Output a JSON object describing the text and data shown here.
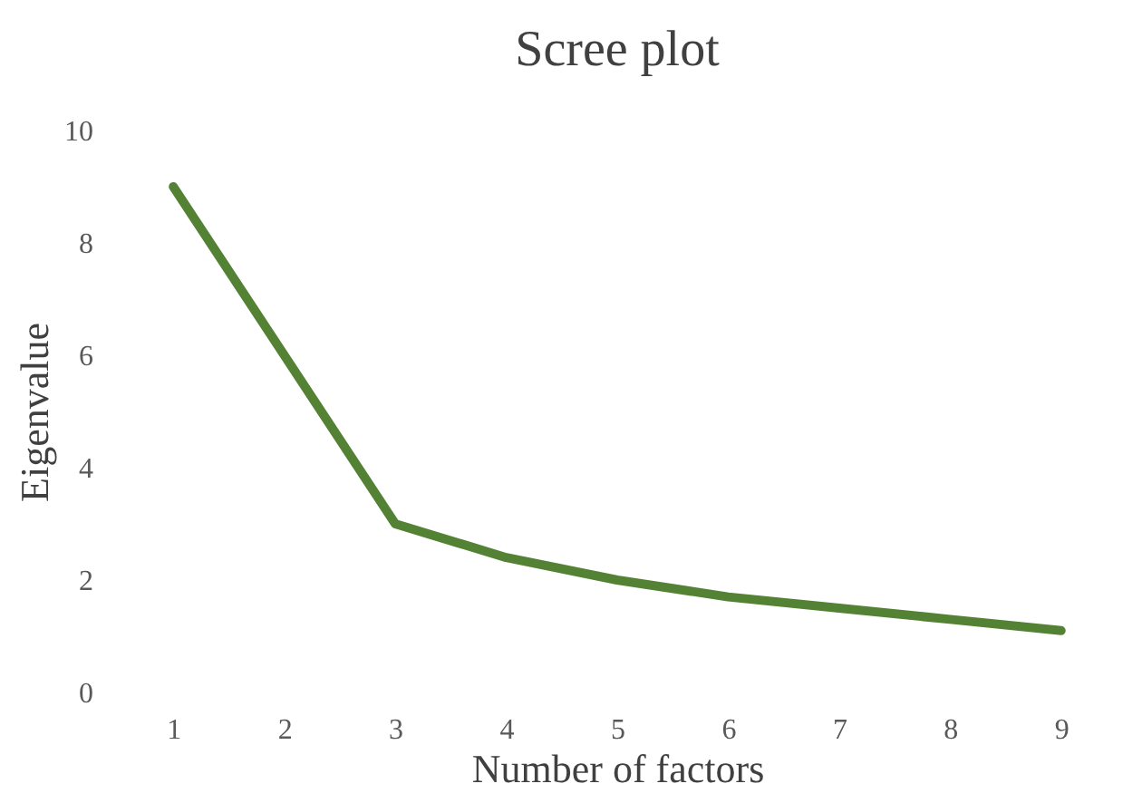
{
  "chart_data": {
    "type": "line",
    "title": "Scree plot",
    "xlabel": "Number of factors",
    "ylabel": "Eigenvalue",
    "categories": [
      "1",
      "2",
      "3",
      "4",
      "5",
      "6",
      "7",
      "8",
      "9"
    ],
    "series": [
      {
        "color": "#548235",
        "values": [
          9,
          6,
          3,
          2.4,
          2,
          1.7,
          1.5,
          1.3,
          1.1
        ]
      }
    ],
    "ylim": [
      0,
      10
    ],
    "yticks": [
      0,
      2,
      4,
      6,
      8,
      10
    ],
    "grid": false,
    "marker": "none",
    "line_style": "solid"
  }
}
